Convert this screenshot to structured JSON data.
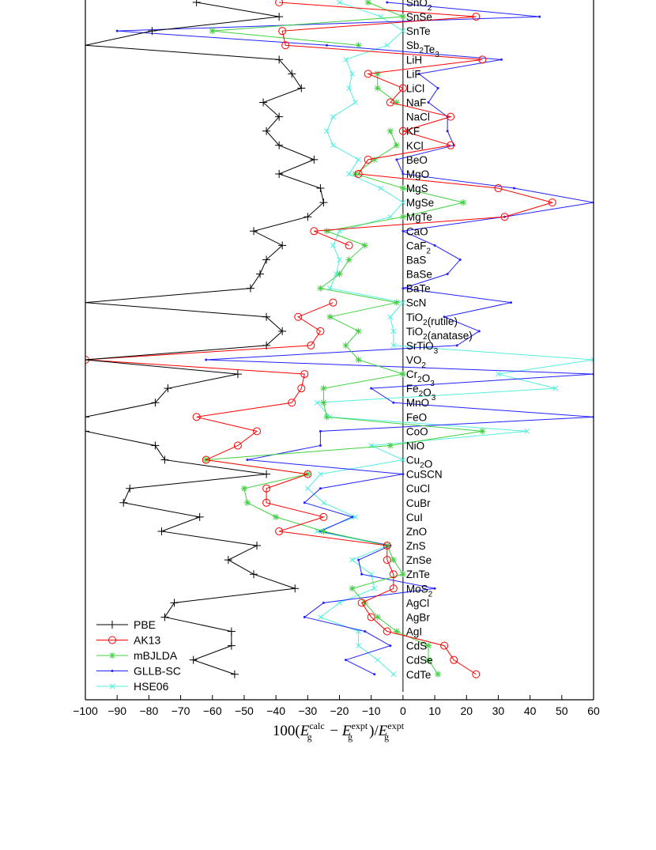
{
  "chart_data": {
    "type": "line",
    "orientation": "horizontal",
    "xlabel": "100(E_g^calc − E_g^expt)/E_g^expt",
    "xlabel_parts": {
      "prefix": "100(",
      "E1": "E",
      "sub1": "g",
      "sup1": "calc",
      "mid": " − ",
      "E2": "E",
      "sub2": "g",
      "sup2": "expt",
      "div": ")/",
      "E3": "E",
      "sub3": "g",
      "sup3": "expt"
    },
    "xlim": [
      -100,
      60
    ],
    "x_ticks": [
      -100,
      -90,
      -80,
      -70,
      -60,
      -50,
      -40,
      -30,
      -20,
      -10,
      0,
      10,
      20,
      30,
      40,
      50,
      60
    ],
    "reference_line_x": 0,
    "legend_position": "bottom-left",
    "categories": [
      {
        "text": "SnO",
        "sub": "2"
      },
      {
        "text": "SnSe"
      },
      {
        "text": "SnTe"
      },
      {
        "text": "Sb",
        "sub": "2",
        "text2": "Te",
        "sub2": "3"
      },
      {
        "text": "LiH"
      },
      {
        "text": "LiF"
      },
      {
        "text": "LiCl"
      },
      {
        "text": "NaF"
      },
      {
        "text": "NaCl"
      },
      {
        "text": "KF"
      },
      {
        "text": "KCl"
      },
      {
        "text": "BeO"
      },
      {
        "text": "MgO"
      },
      {
        "text": "MgS"
      },
      {
        "text": "MgSe"
      },
      {
        "text": "MgTe"
      },
      {
        "text": "CaO"
      },
      {
        "text": "CaF",
        "sub": "2"
      },
      {
        "text": "BaS"
      },
      {
        "text": "BaSe"
      },
      {
        "text": "BaTe"
      },
      {
        "text": "ScN"
      },
      {
        "text": "TiO",
        "sub": "2",
        "text2": "(rutile)"
      },
      {
        "text": "TiO",
        "sub": "2",
        "text2": "(anatase)"
      },
      {
        "text": "SrTiO",
        "sub": "3"
      },
      {
        "text": "VO",
        "sub": "2"
      },
      {
        "text": "Cr",
        "sub": "2",
        "text2": "O",
        "sub2": "3"
      },
      {
        "text": "Fe",
        "sub": "2",
        "text2": "O",
        "sub2": "3"
      },
      {
        "text": "MnO"
      },
      {
        "text": "FeO"
      },
      {
        "text": "CoO"
      },
      {
        "text": "NiO"
      },
      {
        "text": "Cu",
        "sub": "2",
        "text2": "O"
      },
      {
        "text": "CuSCN"
      },
      {
        "text": "CuCl"
      },
      {
        "text": "CuBr"
      },
      {
        "text": "CuI"
      },
      {
        "text": "ZnO"
      },
      {
        "text": "ZnS"
      },
      {
        "text": "ZnSe"
      },
      {
        "text": "ZnTe"
      },
      {
        "text": "MoS",
        "sub": "2"
      },
      {
        "text": "AgCl"
      },
      {
        "text": "AgBr"
      },
      {
        "text": "AgI"
      },
      {
        "text": "CdS"
      },
      {
        "text": "CdSe"
      },
      {
        "text": "CdTe"
      }
    ],
    "series": [
      {
        "name": "PBE",
        "color": "#000000",
        "marker": "plus",
        "values": [
          -65,
          -39,
          -79,
          -100,
          -39,
          -35,
          -32,
          -44,
          -39,
          -43,
          -39,
          -28,
          -39,
          -26,
          -25,
          -30,
          -47,
          -38,
          -43,
          -45,
          -48,
          -100,
          -43,
          -38,
          -43,
          -100,
          -52,
          -74,
          -78,
          -100,
          -100,
          -78,
          -75,
          -43,
          -86,
          -88,
          -64,
          -76,
          -46,
          -55,
          -47,
          -34,
          -72,
          -75,
          -54,
          -54,
          -66,
          -53
        ]
      },
      {
        "name": "AK13",
        "color": "#ff0000",
        "marker": "circle",
        "values": [
          -39,
          23,
          -38,
          -37,
          25,
          -11,
          0,
          -4,
          15,
          0,
          15,
          -11,
          -14,
          30,
          47,
          32,
          -28,
          -17,
          null,
          null,
          null,
          -22,
          -33,
          -26,
          -29,
          -100,
          -31,
          -32,
          -35,
          -65,
          -46,
          -52,
          -62,
          -30,
          -43,
          -43,
          -25,
          -39,
          -5,
          -5,
          -3,
          -3,
          -13,
          -10,
          -5,
          13,
          16,
          23
        ]
      },
      {
        "name": "mBJLDA",
        "color": "#3fd13f",
        "marker": "star",
        "values": [
          -11,
          0,
          -60,
          -14,
          null,
          -8,
          -8,
          -2,
          null,
          -4,
          -2,
          -9,
          -15,
          0,
          19,
          0,
          -24,
          -12,
          -17,
          -20,
          -26,
          -2,
          -23,
          -14,
          -18,
          -14,
          0,
          -25,
          -25,
          -24,
          25,
          -4,
          -62,
          -30,
          -50,
          -49,
          -40,
          -25,
          -5,
          -3,
          0,
          -16,
          -12,
          -8,
          -2,
          8,
          8,
          11
        ]
      },
      {
        "name": "GLLB-SC",
        "color": "#2222ff",
        "marker": "dot",
        "values": [
          -5,
          43,
          -90,
          -24,
          31,
          5,
          11,
          8,
          14,
          14,
          16,
          -2,
          0,
          35,
          60,
          32,
          0,
          10,
          18,
          14,
          0,
          34,
          13,
          24,
          17,
          -62,
          60,
          -10,
          -3,
          60,
          -26,
          -26,
          -49,
          0,
          -26,
          -31,
          -16,
          -26,
          -4,
          -14,
          -13,
          10,
          -25,
          -31,
          -12,
          -4,
          -18,
          -9
        ]
      },
      {
        "name": "HSE06",
        "color": "#55eedd",
        "marker": "cross",
        "values": [
          -20,
          -7,
          0,
          -5,
          -18,
          -16,
          -17,
          -15,
          -22,
          -24,
          -22,
          -14,
          -17,
          -7,
          0,
          -4,
          -20,
          -22,
          -20,
          -21,
          -23,
          0,
          -4,
          -3,
          -3,
          60,
          30,
          48,
          -27,
          -23,
          39,
          -10,
          0,
          -26,
          -30,
          -25,
          -15,
          -27,
          -5,
          -16,
          -10,
          -9,
          -20,
          -26,
          -14,
          -14,
          -8,
          -3
        ]
      }
    ]
  }
}
